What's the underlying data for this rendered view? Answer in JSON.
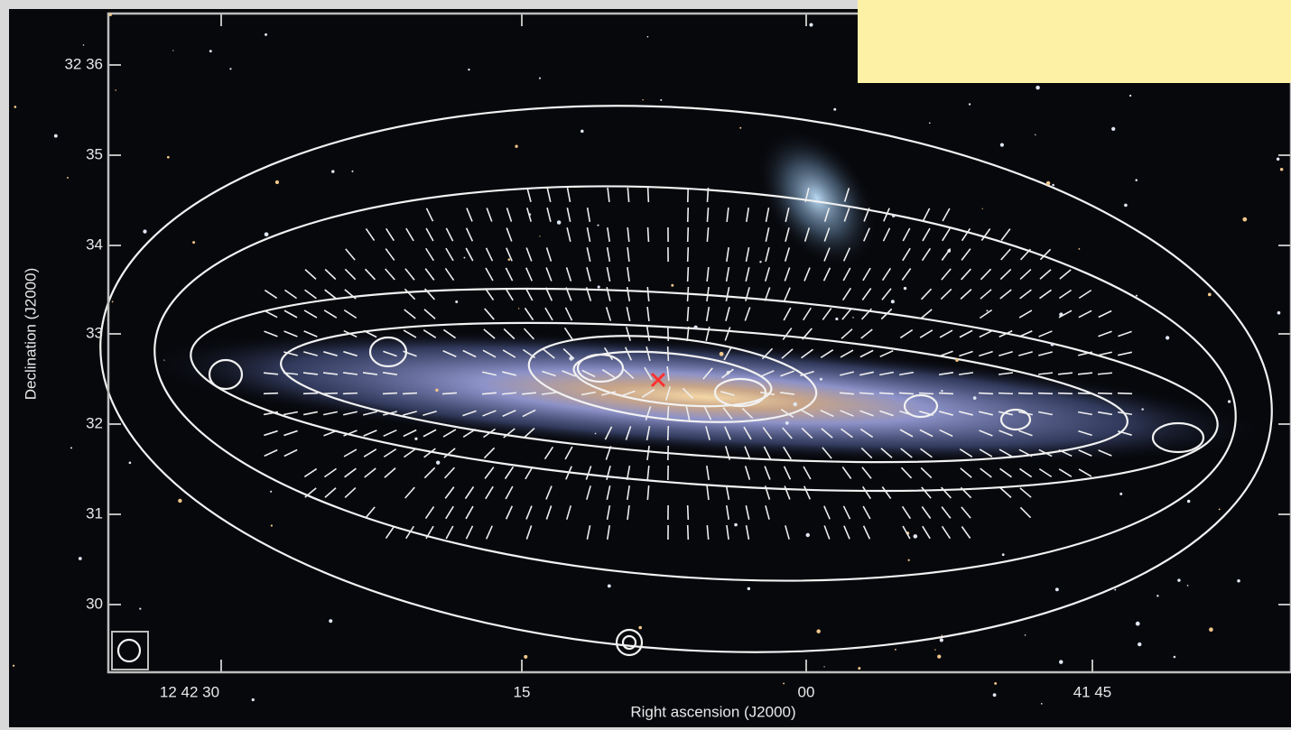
{
  "figure": {
    "y_axis": {
      "label": "Declination (J2000)",
      "ticks": [
        "32 36",
        "35",
        "34",
        "33",
        "32",
        "31",
        "30"
      ]
    },
    "x_axis": {
      "label": "Right ascension (J2000)",
      "ticks": [
        "12 42 30",
        "15",
        "00",
        "41 45"
      ]
    }
  }
}
